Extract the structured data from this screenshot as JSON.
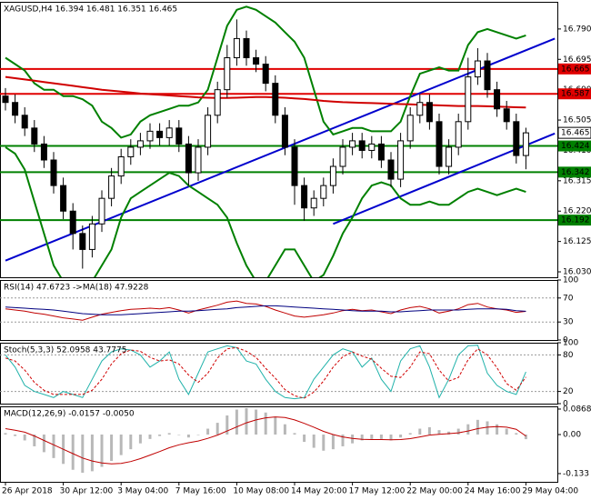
{
  "chart_data": [
    {
      "type": "candlestick",
      "title": "XAGUSD,H4 16.394 16.481 16.351 16.465",
      "ylim": [
        16.013,
        16.875
      ],
      "yticks": [
        {
          "value": 16.79,
          "label": "16.790"
        },
        16.695,
        {
          "value": 16.6,
          "label": "16.600"
        },
        16.505,
        {
          "value": 16.41,
          "label": "16.410"
        },
        16.315,
        {
          "value": 16.22,
          "label": "16.220"
        },
        16.125,
        {
          "value": 16.03,
          "label": "16.030"
        }
      ],
      "grid": false,
      "up_color": "#ffffff",
      "down_color": "#000000",
      "open": [
        16.58,
        16.56,
        16.52,
        16.48,
        16.43,
        16.38,
        16.3,
        16.22,
        16.15,
        16.1,
        16.18,
        16.26,
        16.33,
        16.39,
        16.42,
        16.44,
        16.47,
        16.45,
        16.48,
        16.43,
        16.34,
        16.42,
        16.52,
        16.6,
        16.7,
        16.76,
        16.7,
        16.68,
        16.62,
        16.52,
        16.42,
        16.3,
        16.23,
        16.26,
        16.3,
        16.36,
        16.42,
        16.44,
        16.41,
        16.43,
        16.38,
        16.32,
        16.44,
        16.52,
        16.56,
        16.5,
        16.36,
        16.42,
        16.5,
        16.64,
        16.69,
        16.6,
        16.54,
        16.5,
        16.394
      ],
      "high": [
        16.605,
        16.585,
        16.545,
        16.505,
        16.455,
        16.405,
        16.325,
        16.245,
        16.175,
        16.205,
        16.285,
        16.355,
        16.415,
        16.445,
        16.465,
        16.495,
        16.495,
        16.505,
        16.505,
        16.455,
        16.445,
        16.545,
        16.625,
        16.74,
        16.82,
        16.785,
        16.725,
        16.705,
        16.645,
        16.545,
        16.445,
        16.325,
        16.285,
        16.325,
        16.385,
        16.445,
        16.465,
        16.465,
        16.455,
        16.455,
        16.405,
        16.465,
        16.545,
        16.585,
        16.585,
        16.525,
        16.445,
        16.525,
        16.7,
        16.73,
        16.715,
        16.625,
        16.565,
        16.525,
        16.481
      ],
      "low": [
        16.535,
        16.495,
        16.455,
        16.405,
        16.355,
        16.275,
        16.195,
        16.1,
        16.04,
        16.075,
        16.155,
        16.235,
        16.305,
        16.365,
        16.395,
        16.415,
        16.425,
        16.425,
        16.405,
        16.3,
        16.315,
        16.395,
        16.495,
        16.575,
        16.675,
        16.675,
        16.655,
        16.595,
        16.495,
        16.395,
        16.24,
        16.19,
        16.205,
        16.235,
        16.275,
        16.335,
        16.395,
        16.385,
        16.385,
        16.355,
        16.295,
        16.295,
        16.415,
        16.495,
        16.475,
        16.335,
        16.335,
        16.395,
        16.475,
        16.615,
        16.575,
        16.515,
        16.475,
        16.369,
        16.351
      ],
      "close": [
        16.56,
        16.52,
        16.48,
        16.43,
        16.38,
        16.3,
        16.22,
        16.15,
        16.1,
        16.18,
        16.26,
        16.33,
        16.39,
        16.42,
        16.44,
        16.47,
        16.45,
        16.48,
        16.43,
        16.34,
        16.42,
        16.52,
        16.6,
        16.7,
        16.76,
        16.7,
        16.68,
        16.62,
        16.52,
        16.42,
        16.3,
        16.23,
        16.26,
        16.3,
        16.36,
        16.42,
        16.44,
        16.41,
        16.43,
        16.38,
        16.32,
        16.44,
        16.52,
        16.56,
        16.5,
        16.36,
        16.42,
        16.5,
        16.64,
        16.69,
        16.6,
        16.54,
        16.5,
        16.394,
        16.465
      ],
      "series": [
        {
          "style": "line",
          "color": "#008000",
          "values": [
            16.7,
            16.68,
            16.66,
            16.62,
            16.6,
            16.6,
            16.58,
            16.58,
            16.57,
            16.55,
            16.5,
            16.48,
            16.45,
            16.46,
            16.5,
            16.52,
            16.53,
            16.54,
            16.55,
            16.55,
            16.56,
            16.6,
            16.7,
            16.8,
            16.85,
            16.86,
            16.85,
            16.83,
            16.81,
            16.78,
            16.75,
            16.7,
            16.6,
            16.5,
            16.46,
            16.47,
            16.48,
            16.48,
            16.47,
            16.47,
            16.47,
            16.5,
            16.58,
            16.65,
            16.66,
            16.67,
            16.66,
            16.66,
            16.74,
            16.78,
            16.79,
            16.78,
            16.77,
            16.76,
            16.77
          ]
        },
        {
          "style": "line",
          "color": "#008000",
          "values": [
            16.42,
            16.4,
            16.35,
            16.25,
            16.15,
            16.05,
            16.0,
            15.98,
            15.97,
            16.0,
            16.05,
            16.1,
            16.2,
            16.26,
            16.28,
            16.3,
            16.32,
            16.34,
            16.33,
            16.3,
            16.28,
            16.26,
            16.24,
            16.2,
            16.12,
            16.05,
            16.0,
            16.0,
            16.05,
            16.1,
            16.1,
            16.05,
            16.0,
            16.02,
            16.08,
            16.15,
            16.2,
            16.26,
            16.3,
            16.31,
            16.3,
            16.26,
            16.24,
            16.24,
            16.25,
            16.24,
            16.24,
            16.26,
            16.28,
            16.29,
            16.28,
            16.27,
            16.28,
            16.29,
            16.28
          ]
        },
        {
          "style": "line",
          "color": "#d00000",
          "values": [
            16.64,
            16.636,
            16.632,
            16.628,
            16.624,
            16.62,
            16.616,
            16.612,
            16.608,
            16.604,
            16.6,
            16.597,
            16.594,
            16.591,
            16.588,
            16.586,
            16.584,
            16.582,
            16.58,
            16.578,
            16.576,
            16.575,
            16.574,
            16.574,
            16.575,
            16.576,
            16.577,
            16.577,
            16.576,
            16.575,
            16.573,
            16.571,
            16.568,
            16.565,
            16.563,
            16.561,
            16.56,
            16.559,
            16.558,
            16.557,
            16.556,
            16.555,
            16.554,
            16.553,
            16.552,
            16.551,
            16.55,
            16.549,
            16.549,
            16.549,
            16.548,
            16.547,
            16.546,
            16.545,
            16.544
          ]
        }
      ],
      "trend_lines": [
        {
          "color": "#0000cd",
          "x": [
            0,
            57
          ],
          "y": [
            16.065,
            16.76
          ]
        },
        {
          "color": "#0000cd",
          "x": [
            34,
            57
          ],
          "y": [
            16.18,
            16.463
          ]
        }
      ],
      "levels": [
        {
          "value": 16.665,
          "color": "#e00000"
        },
        {
          "value": 16.587,
          "color": "#e00000"
        },
        {
          "value": 16.424,
          "color": "#008000"
        },
        {
          "value": 16.342,
          "color": "#008000"
        },
        {
          "value": 16.192,
          "color": "#008000"
        }
      ],
      "last_price": 16.465
    },
    {
      "type": "line",
      "title": "RSI(14) 47.6723 ->MA(18) 47.9228",
      "ylim": [
        0,
        100
      ],
      "yticks": [
        100,
        70,
        30,
        0
      ],
      "grid": true,
      "series": [
        {
          "style": "line",
          "color": "#c00000",
          "values": [
            52,
            50,
            48,
            45,
            43,
            40,
            37,
            35,
            33,
            38,
            43,
            46,
            49,
            51,
            52,
            53,
            52,
            54,
            50,
            45,
            50,
            54,
            58,
            63,
            65,
            61,
            60,
            56,
            50,
            45,
            40,
            38,
            40,
            42,
            45,
            49,
            51,
            49,
            50,
            47,
            44,
            50,
            54,
            56,
            52,
            45,
            48,
            52,
            59,
            61,
            55,
            52,
            50,
            46,
            47.6723
          ]
        },
        {
          "style": "line",
          "color": "#000080",
          "values": [
            55,
            54,
            53,
            52,
            51,
            50,
            48,
            46,
            44,
            43,
            42,
            42,
            42,
            43,
            44,
            45,
            46,
            47,
            48,
            48,
            49,
            50,
            51,
            52,
            54,
            55,
            56,
            57,
            57,
            56,
            55,
            54,
            53,
            52,
            51,
            50,
            49,
            48,
            48,
            48,
            47,
            47,
            48,
            49,
            50,
            50,
            50,
            50,
            51,
            52,
            52,
            52,
            51,
            49,
            47.9228
          ]
        }
      ]
    },
    {
      "type": "line",
      "title": "Stoch(5,3,3) 52.0958 43.7775",
      "ylim": [
        0,
        100
      ],
      "yticks": [
        100,
        80,
        20,
        0
      ],
      "grid": true,
      "series": [
        {
          "style": "line",
          "color": "#20b2aa",
          "values": [
            80,
            60,
            30,
            20,
            15,
            10,
            20,
            15,
            10,
            40,
            70,
            85,
            90,
            88,
            80,
            60,
            70,
            85,
            40,
            15,
            50,
            85,
            90,
            95,
            92,
            70,
            65,
            40,
            20,
            10,
            8,
            10,
            40,
            60,
            80,
            90,
            85,
            60,
            75,
            40,
            20,
            70,
            90,
            95,
            60,
            10,
            40,
            80,
            95,
            96,
            50,
            30,
            20,
            15,
            52.0958
          ]
        },
        {
          "style": "line",
          "color": "#d00000",
          "dash": true,
          "values": [
            75,
            70,
            55,
            35,
            22,
            15,
            15,
            15,
            15,
            22,
            40,
            65,
            82,
            88,
            86,
            76,
            70,
            72,
            65,
            47,
            35,
            50,
            75,
            90,
            92,
            86,
            76,
            58,
            42,
            23,
            13,
            9,
            19,
            37,
            60,
            77,
            85,
            78,
            73,
            58,
            45,
            43,
            60,
            85,
            82,
            55,
            37,
            43,
            72,
            90,
            80,
            59,
            33,
            22,
            43.7775
          ]
        }
      ]
    },
    {
      "type": "bar",
      "title": "MACD(12,26,9) -0.0157 -0.0050",
      "ylim": [
        -0.161,
        0.096
      ],
      "yticks": [
        0.0868,
        {
          "value": 0,
          "label": "0.00"
        },
        -0.133
      ],
      "grid": false,
      "categories": [
        "26 Apr 2018",
        null,
        null,
        null,
        null,
        null,
        "30 Apr 12:00",
        null,
        null,
        null,
        null,
        null,
        "3 May 04:00",
        null,
        null,
        null,
        null,
        null,
        "7 May 16:00",
        null,
        null,
        null,
        null,
        null,
        "10 May 08:00",
        null,
        null,
        null,
        null,
        null,
        "14 May 20:00",
        null,
        null,
        null,
        null,
        null,
        "17 May 12:00",
        null,
        null,
        null,
        null,
        null,
        "22 May 00:00",
        null,
        null,
        null,
        null,
        null,
        "24 May 16:00",
        null,
        null,
        null,
        null,
        null,
        "29 May 04:00"
      ],
      "series": [
        {
          "style": "bar",
          "color": "#b8b8b8",
          "values": [
            0.005,
            -0.005,
            -0.02,
            -0.04,
            -0.06,
            -0.08,
            -0.1,
            -0.12,
            -0.13,
            -0.125,
            -0.11,
            -0.09,
            -0.07,
            -0.05,
            -0.03,
            -0.015,
            -0.005,
            0.005,
            0,
            -0.01,
            0,
            0.02,
            0.04,
            0.065,
            0.085,
            0.09,
            0.085,
            0.075,
            0.06,
            0.035,
            0.005,
            -0.025,
            -0.045,
            -0.055,
            -0.05,
            -0.04,
            -0.03,
            -0.02,
            -0.015,
            -0.015,
            -0.02,
            -0.01,
            0.005,
            0.02,
            0.025,
            0.015,
            0.01,
            0.02,
            0.035,
            0.05,
            0.045,
            0.035,
            0.02,
            0.005,
            -0.0157
          ]
        },
        {
          "style": "line",
          "color": "#c00000",
          "values": [
            0.02,
            0.015,
            0.008,
            -0.005,
            -0.02,
            -0.035,
            -0.05,
            -0.065,
            -0.08,
            -0.09,
            -0.097,
            -0.1,
            -0.098,
            -0.092,
            -0.082,
            -0.07,
            -0.058,
            -0.045,
            -0.035,
            -0.028,
            -0.022,
            -0.013,
            -0.002,
            0.012,
            0.026,
            0.04,
            0.05,
            0.057,
            0.06,
            0.058,
            0.05,
            0.038,
            0.025,
            0.011,
            0,
            -0.008,
            -0.013,
            -0.016,
            -0.017,
            -0.017,
            -0.018,
            -0.017,
            -0.014,
            -0.008,
            -0.002,
            0.001,
            0.003,
            0.006,
            0.012,
            0.02,
            0.025,
            0.027,
            0.025,
            0.018,
            -0.005
          ]
        }
      ]
    }
  ]
}
